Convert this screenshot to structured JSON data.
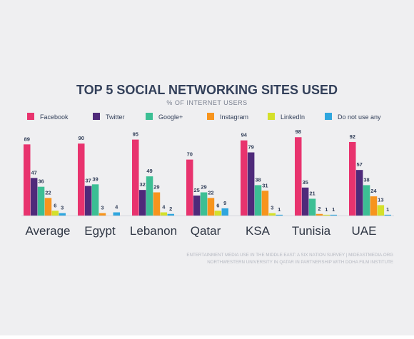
{
  "background": "#efeff1",
  "colors": {
    "title": "#33405a",
    "subtitle": "#7b8190",
    "text": "#33405a",
    "value_label": "#33405a",
    "category": "#2f3644",
    "source": "#b5b8c1"
  },
  "source": {
    "line1": "ENTERTAINMENT MEDIA USE IN THE MIDDLE EAST: A SIX NATION SURVEY | MIDEASTMEDIA.ORG",
    "line2": "NORTHWESTERN UNIVERSITY IN QATAR IN PARTNERSHIP WITH DOHA FILM INSTITUTE"
  },
  "chart_data": {
    "type": "bar",
    "title": "TOP 5 SOCIAL NETWORKING SITES USED",
    "subtitle": "% OF INTERNET USERS",
    "xlabel": "",
    "ylabel": "",
    "ylim": [
      0,
      100
    ],
    "grid": false,
    "legend_position": "top",
    "categories": [
      "Average",
      "Egypt",
      "Lebanon",
      "Qatar",
      "KSA",
      "Tunisia",
      "UAE"
    ],
    "series": [
      {
        "name": "Facebook",
        "color": "#e8336e",
        "values": [
          89,
          90,
          95,
          70,
          94,
          98,
          92
        ]
      },
      {
        "name": "Twitter",
        "color": "#4f2a7a",
        "values": [
          47,
          37,
          32,
          25,
          79,
          35,
          57
        ]
      },
      {
        "name": "Google+",
        "color": "#3cbf94",
        "values": [
          36,
          39,
          49,
          29,
          38,
          21,
          38
        ]
      },
      {
        "name": "Instagram",
        "color": "#f7941d",
        "values": [
          22,
          3,
          29,
          22,
          31,
          2,
          24
        ]
      },
      {
        "name": "LinkedIn",
        "color": "#d4e02a",
        "values": [
          6,
          null,
          4,
          6,
          3,
          1,
          13
        ]
      },
      {
        "name": "Do not use any",
        "color": "#2fa6de",
        "values": [
          3,
          4,
          2,
          9,
          1,
          1,
          1
        ]
      }
    ]
  }
}
